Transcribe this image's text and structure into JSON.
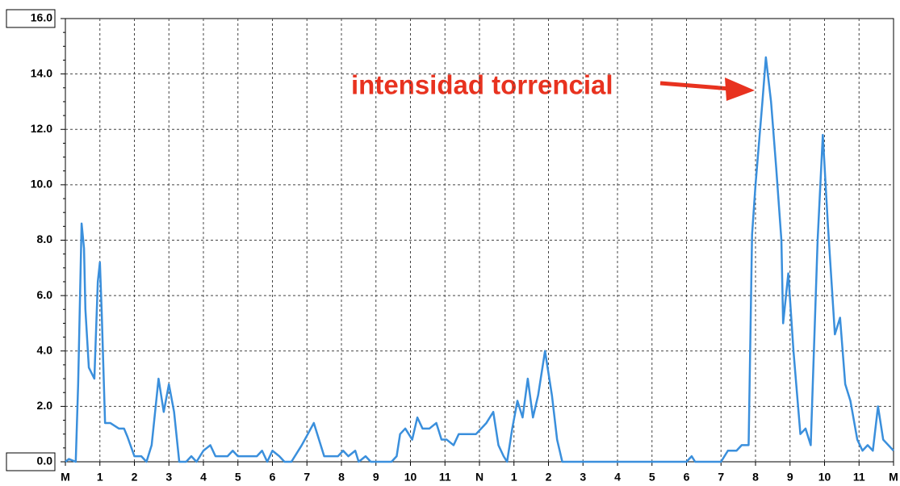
{
  "chart_data": {
    "type": "line",
    "annotation": "intensidad torrencial",
    "x": [
      0,
      0.1,
      0.3,
      0.37,
      0.47,
      0.54,
      0.58,
      0.68,
      0.84,
      0.94,
      1.0,
      1.05,
      1.15,
      1.3,
      1.55,
      1.7,
      1.8,
      2.0,
      2.2,
      2.35,
      2.5,
      2.7,
      2.85,
      3.0,
      3.15,
      3.3,
      3.5,
      3.65,
      3.8,
      4.0,
      4.2,
      4.35,
      4.7,
      4.85,
      5.0,
      5.55,
      5.7,
      5.85,
      6.0,
      6.2,
      6.35,
      6.55,
      6.85,
      7.2,
      7.5,
      7.9,
      8.05,
      8.2,
      8.4,
      8.5,
      8.7,
      8.85,
      9.45,
      9.6,
      9.7,
      9.85,
      10.05,
      10.2,
      10.35,
      10.55,
      10.75,
      10.9,
      11.05,
      11.25,
      11.4,
      11.9,
      12.2,
      12.4,
      12.55,
      12.7,
      12.8,
      12.95,
      13.1,
      13.25,
      13.4,
      13.55,
      13.7,
      13.9,
      14.1,
      14.25,
      14.4,
      18.0,
      18.15,
      18.25,
      19.0,
      19.2,
      19.45,
      19.6,
      19.8,
      19.9,
      20.0,
      20.2,
      20.3,
      20.45,
      20.6,
      20.75,
      20.8,
      20.95,
      21.1,
      21.3,
      21.45,
      21.6,
      21.8,
      21.95,
      22.1,
      22.3,
      22.45,
      22.6,
      22.75,
      22.95,
      23.1,
      23.25,
      23.4,
      23.55,
      23.7,
      24
    ],
    "series": [
      {
        "name": "intensidad",
        "color": "#3a8fdc",
        "values": [
          0,
          0.1,
          0,
          2.8,
          8.6,
          7.7,
          5.5,
          3.4,
          3.0,
          6.5,
          7.2,
          5.5,
          1.4,
          1.4,
          1.2,
          1.2,
          0.9,
          0.2,
          0.2,
          0,
          0.6,
          3.0,
          1.8,
          2.8,
          1.8,
          0,
          0,
          0.2,
          0,
          0.4,
          0.6,
          0.2,
          0.2,
          0.4,
          0.2,
          0.2,
          0.4,
          0,
          0.4,
          0.2,
          0,
          0,
          0.6,
          1.4,
          0.2,
          0.2,
          0.4,
          0.2,
          0.4,
          0,
          0.2,
          0,
          0,
          0.2,
          1.0,
          1.2,
          0.8,
          1.6,
          1.2,
          1.2,
          1.4,
          0.8,
          0.8,
          0.6,
          1.0,
          1.0,
          1.4,
          1.8,
          0.6,
          0.2,
          0,
          1.2,
          2.2,
          1.6,
          3.0,
          1.6,
          2.4,
          4.0,
          2.4,
          0.8,
          0,
          0,
          0.2,
          0,
          0,
          0.4,
          0.4,
          0.6,
          0.6,
          8.2,
          10.0,
          13.0,
          14.6,
          13.0,
          10.6,
          8.0,
          5.0,
          6.8,
          4.0,
          1.0,
          1.2,
          0.6,
          8.0,
          11.8,
          8.5,
          4.6,
          5.2,
          2.8,
          2.2,
          0.8,
          0.4,
          0.6,
          0.4,
          2.0,
          0.8,
          0.4
        ]
      }
    ],
    "xlim": [
      0,
      24
    ],
    "xticks": [
      {
        "value": 0,
        "label": "M"
      },
      {
        "value": 1,
        "label": "1"
      },
      {
        "value": 2,
        "label": "2"
      },
      {
        "value": 3,
        "label": "3"
      },
      {
        "value": 4,
        "label": "4"
      },
      {
        "value": 5,
        "label": "5"
      },
      {
        "value": 6,
        "label": "6"
      },
      {
        "value": 7,
        "label": "7"
      },
      {
        "value": 8,
        "label": "8"
      },
      {
        "value": 9,
        "label": "9"
      },
      {
        "value": 10,
        "label": "10"
      },
      {
        "value": 11,
        "label": "11"
      },
      {
        "value": 12,
        "label": "N"
      },
      {
        "value": 13,
        "label": "1"
      },
      {
        "value": 14,
        "label": "2"
      },
      {
        "value": 15,
        "label": "3"
      },
      {
        "value": 16,
        "label": "4"
      },
      {
        "value": 17,
        "label": "5"
      },
      {
        "value": 18,
        "label": "6"
      },
      {
        "value": 19,
        "label": "7"
      },
      {
        "value": 20,
        "label": "8"
      },
      {
        "value": 21,
        "label": "9"
      },
      {
        "value": 22,
        "label": "10"
      },
      {
        "value": 23,
        "label": "11"
      },
      {
        "value": 24,
        "label": "M"
      }
    ],
    "ylim": [
      0,
      16
    ],
    "yticks": [
      {
        "value": 0,
        "label": "0.0"
      },
      {
        "value": 2,
        "label": "2.0"
      },
      {
        "value": 4,
        "label": "4.0"
      },
      {
        "value": 6,
        "label": "6.0"
      },
      {
        "value": 8,
        "label": "8.0"
      },
      {
        "value": 10,
        "label": "10.0"
      },
      {
        "value": 12,
        "label": "12.0"
      },
      {
        "value": 14,
        "label": "14.0"
      },
      {
        "value": 16,
        "label": "16.0"
      }
    ],
    "grid": true
  }
}
